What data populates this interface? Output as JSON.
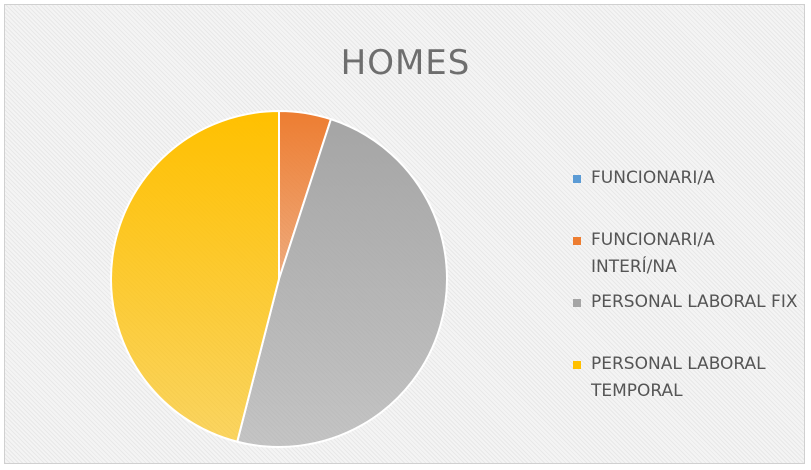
{
  "chart_data": {
    "type": "pie",
    "title": "HOMES",
    "categories": [
      "FUNCIONARI/A",
      "FUNCIONARI/A INTERÍ/NA",
      "PERSONAL LABORAL FIX",
      "PERSONAL LABORAL TEMPORAL"
    ],
    "values": [
      0,
      5,
      49,
      46
    ],
    "colors": [
      "#5b9bd5",
      "#ed7d31",
      "#a5a5a5",
      "#ffc000"
    ],
    "legend": "right"
  }
}
